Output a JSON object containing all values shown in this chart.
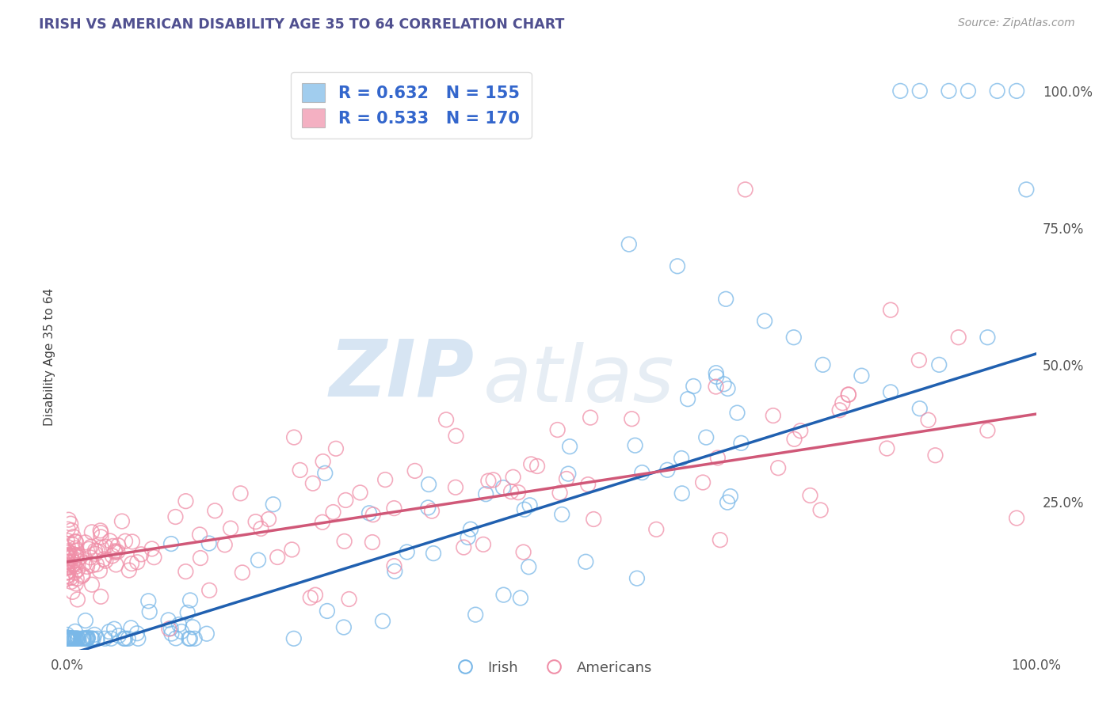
{
  "title": "IRISH VS AMERICAN DISABILITY AGE 35 TO 64 CORRELATION CHART",
  "source_text": "Source: ZipAtlas.com",
  "ylabel": "Disability Age 35 to 64",
  "watermark_part1": "ZIP",
  "watermark_part2": "atlas",
  "irish_R": 0.632,
  "irish_N": 155,
  "american_R": 0.533,
  "american_N": 170,
  "irish_color": "#7ab8e8",
  "american_color": "#f08fa8",
  "irish_line_color": "#2060b0",
  "american_line_color": "#d05878",
  "background_color": "#ffffff",
  "grid_color": "#cccccc",
  "title_color": "#505090",
  "legend_text_color": "#3366cc",
  "right_ytick_labels": [
    "25.0%",
    "50.0%",
    "75.0%",
    "100.0%"
  ],
  "right_ytick_values": [
    0.25,
    0.5,
    0.75,
    1.0
  ],
  "xlim": [
    0.0,
    1.0
  ],
  "ylim": [
    -0.02,
    1.05
  ],
  "irish_intercept": -0.03,
  "irish_slope": 0.55,
  "american_intercept": 0.14,
  "american_slope": 0.27
}
